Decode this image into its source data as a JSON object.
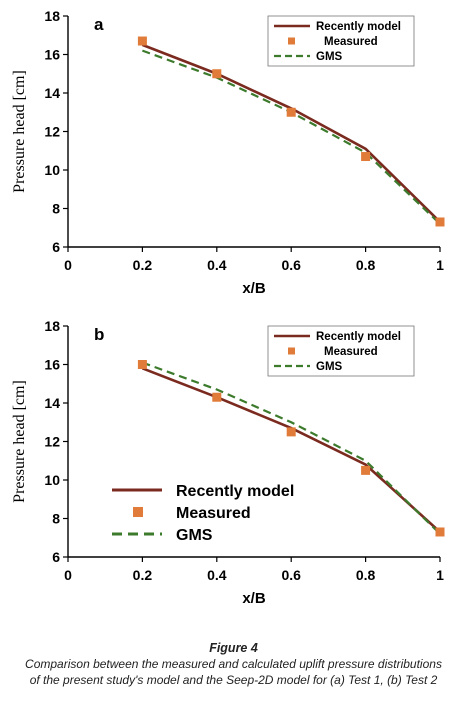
{
  "charts": [
    {
      "panel_label": "a",
      "ylabel": "Pressure head [cm]",
      "xlabel": "x/B",
      "chart_data": {
        "type": "line",
        "xlim": [
          0,
          1
        ],
        "ylim": [
          6,
          18
        ],
        "xticks": [
          "0",
          "0.2",
          "0.4",
          "0.6",
          "0.8",
          "1"
        ],
        "yticks": [
          "6",
          "8",
          "10",
          "12",
          "14",
          "16",
          "18"
        ],
        "grid": false,
        "legend_position": "top-right",
        "series": [
          {
            "name": "Recently model",
            "style": "line",
            "color": "#7b2a1f",
            "x": [
              0.2,
              0.4,
              0.6,
              0.8,
              1.0
            ],
            "y": [
              16.5,
              15.0,
              13.2,
              11.1,
              7.3
            ]
          },
          {
            "name": "Measured",
            "style": "marker",
            "color": "#e07b39",
            "x": [
              0.2,
              0.4,
              0.6,
              0.8,
              1.0
            ],
            "y": [
              16.7,
              15.0,
              13.0,
              10.7,
              7.3
            ]
          },
          {
            "name": "GMS",
            "style": "dashed",
            "color": "#3c7a2c",
            "x": [
              0.2,
              0.4,
              0.6,
              0.8,
              1.0
            ],
            "y": [
              16.2,
              14.8,
              13.0,
              10.9,
              7.2
            ]
          }
        ]
      }
    },
    {
      "panel_label": "b",
      "ylabel": "Pressure head [cm]",
      "xlabel": "x/B",
      "chart_data": {
        "type": "line",
        "xlim": [
          0,
          1
        ],
        "ylim": [
          6,
          18
        ],
        "xticks": [
          "0",
          "0.2",
          "0.4",
          "0.6",
          "0.8",
          "1"
        ],
        "yticks": [
          "6",
          "8",
          "10",
          "12",
          "14",
          "16",
          "18"
        ],
        "grid": false,
        "legend_position": "top-right",
        "series": [
          {
            "name": "Recently model",
            "style": "line",
            "color": "#7b2a1f",
            "x": [
              0.2,
              0.4,
              0.6,
              0.8,
              1.0
            ],
            "y": [
              15.8,
              14.3,
              12.7,
              10.8,
              7.3
            ]
          },
          {
            "name": "Measured",
            "style": "marker",
            "color": "#e07b39",
            "x": [
              0.2,
              0.4,
              0.6,
              0.8,
              1.0
            ],
            "y": [
              16.0,
              14.3,
              12.5,
              10.5,
              7.3
            ]
          },
          {
            "name": "GMS",
            "style": "dashed",
            "color": "#3c7a2c",
            "x": [
              0.2,
              0.4,
              0.6,
              0.8,
              1.0
            ],
            "y": [
              16.1,
              14.7,
              13.0,
              11.0,
              7.2
            ]
          }
        ]
      }
    }
  ],
  "inset_legend": [
    "Recently model",
    "Measured",
    "GMS"
  ],
  "caption": {
    "figure_label": "Figure 4",
    "line1": "Comparison between the measured and calculated uplift pressure distributions",
    "line2": "of the present study's model and the Seep-2D model for (a) Test 1, (b) Test 2"
  }
}
